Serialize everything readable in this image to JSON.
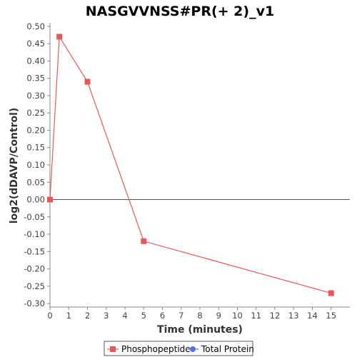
{
  "chart_data": {
    "type": "line",
    "title": "NASGVVNSS#PR(+ 2)_v1",
    "xlabel": "Time (minutes)",
    "ylabel": "log2(dDAVP/Control)",
    "xlim": [
      0,
      16
    ],
    "ylim": [
      -0.31,
      0.51
    ],
    "xticks": [
      0,
      1,
      2,
      3,
      4,
      5,
      6,
      7,
      8,
      9,
      10,
      11,
      12,
      13,
      14,
      15
    ],
    "yticks": [
      0.5,
      0.45,
      0.4,
      0.35,
      0.3,
      0.25,
      0.2,
      0.15,
      0.1,
      0.05,
      0.0,
      -0.05,
      -0.1,
      -0.15,
      -0.2,
      -0.25,
      -0.3
    ],
    "ytick_labels": [
      "0.50",
      "0.45",
      "0.40",
      "0.35",
      "0.30",
      "0.25",
      "0.20",
      "0.15",
      "0.10",
      "0.05",
      "0.00",
      "-0.05",
      "-0.10",
      "-0.15",
      "-0.20",
      "-0.25",
      "-0.30"
    ],
    "zero_line": true,
    "grid": false,
    "legend_position": "bottom-center",
    "series": [
      {
        "name": "Phosphopeptide",
        "color": "#e8575a",
        "marker": "square",
        "x": [
          0,
          0.5,
          2,
          5,
          15
        ],
        "y": [
          0.0,
          0.47,
          0.34,
          -0.12,
          -0.27
        ]
      },
      {
        "name": "Total Protein",
        "color": "#5b6ee1",
        "marker": "circle",
        "x": [],
        "y": []
      }
    ]
  }
}
